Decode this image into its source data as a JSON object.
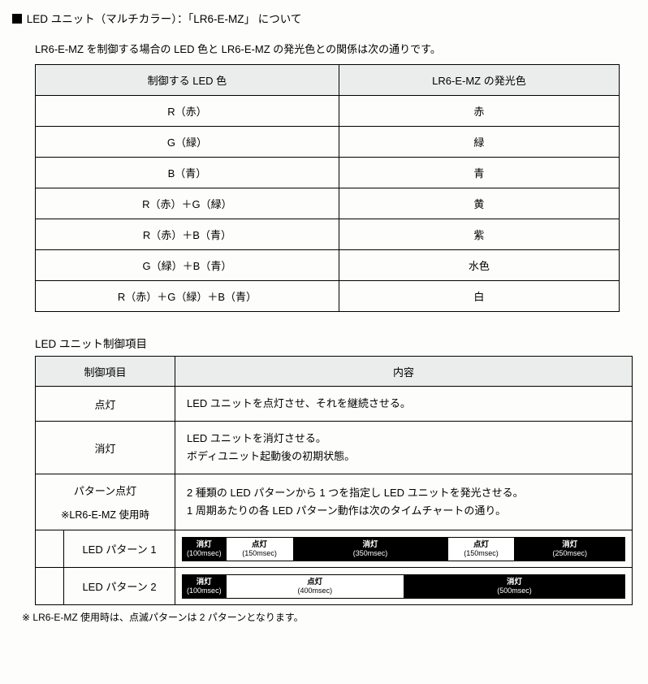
{
  "section_title_prefix": "LED ユニット（マルチカラー）：「LR6-E-MZ」 について",
  "intro": "LR6-E-MZ を制御する場合の LED 色と LR6-E-MZ の発光色との関係は次の通りです。",
  "table1": {
    "headers": [
      "制御する LED 色",
      "LR6-E-MZ の発光色"
    ],
    "rows": [
      [
        "R（赤）",
        "赤"
      ],
      [
        "G（緑）",
        "緑"
      ],
      [
        "B（青）",
        "青"
      ],
      [
        "R（赤）＋G（緑）",
        "黄"
      ],
      [
        "R（赤）＋B（青）",
        "紫"
      ],
      [
        "G（緑）＋B（青）",
        "水色"
      ],
      [
        "R（赤）＋G（緑）＋B（青）",
        "白"
      ]
    ]
  },
  "sub_heading": "LED ユニット制御項目",
  "table2": {
    "headers": [
      "制御項目",
      "内容"
    ],
    "rows": [
      {
        "label": "点灯",
        "content": "LED ユニットを点灯させ、それを継続させる。"
      },
      {
        "label": "消灯",
        "content": "LED ユニットを消灯させる。\nボディユニット起動後の初期状態。"
      },
      {
        "label": "パターン点灯",
        "note": "※LR6-E-MZ 使用時",
        "content": "2 種類の LED パターンから 1 つを指定し LED ユニットを発光させる。\n1 周期あたりの各 LED パターン動作は次のタイムチャートの通り。"
      }
    ],
    "pattern_rows": [
      {
        "label": "LED パターン 1",
        "segments": [
          {
            "state": "off",
            "text": "消灯",
            "dur": "(100msec)",
            "flex": 100
          },
          {
            "state": "on",
            "text": "点灯",
            "dur": "(150msec)",
            "flex": 150
          },
          {
            "state": "off",
            "text": "消灯",
            "dur": "(350msec)",
            "flex": 350
          },
          {
            "state": "on",
            "text": "点灯",
            "dur": "(150msec)",
            "flex": 150
          },
          {
            "state": "off",
            "text": "消灯",
            "dur": "(250msec)",
            "flex": 250
          }
        ]
      },
      {
        "label": "LED パターン 2",
        "segments": [
          {
            "state": "off",
            "text": "消灯",
            "dur": "(100msec)",
            "flex": 100
          },
          {
            "state": "on",
            "text": "点灯",
            "dur": "(400msec)",
            "flex": 400
          },
          {
            "state": "off",
            "text": "消灯",
            "dur": "(500msec)",
            "flex": 500
          }
        ]
      }
    ]
  },
  "footnote": "※ LR6-E-MZ 使用時は、点滅パターンは 2 パターンとなります。",
  "colors": {
    "header_bg": "#ebeded",
    "border": "#000000",
    "seg_off_bg": "#000000",
    "seg_off_fg": "#ffffff",
    "seg_on_bg": "#ffffff",
    "seg_on_fg": "#000000"
  }
}
